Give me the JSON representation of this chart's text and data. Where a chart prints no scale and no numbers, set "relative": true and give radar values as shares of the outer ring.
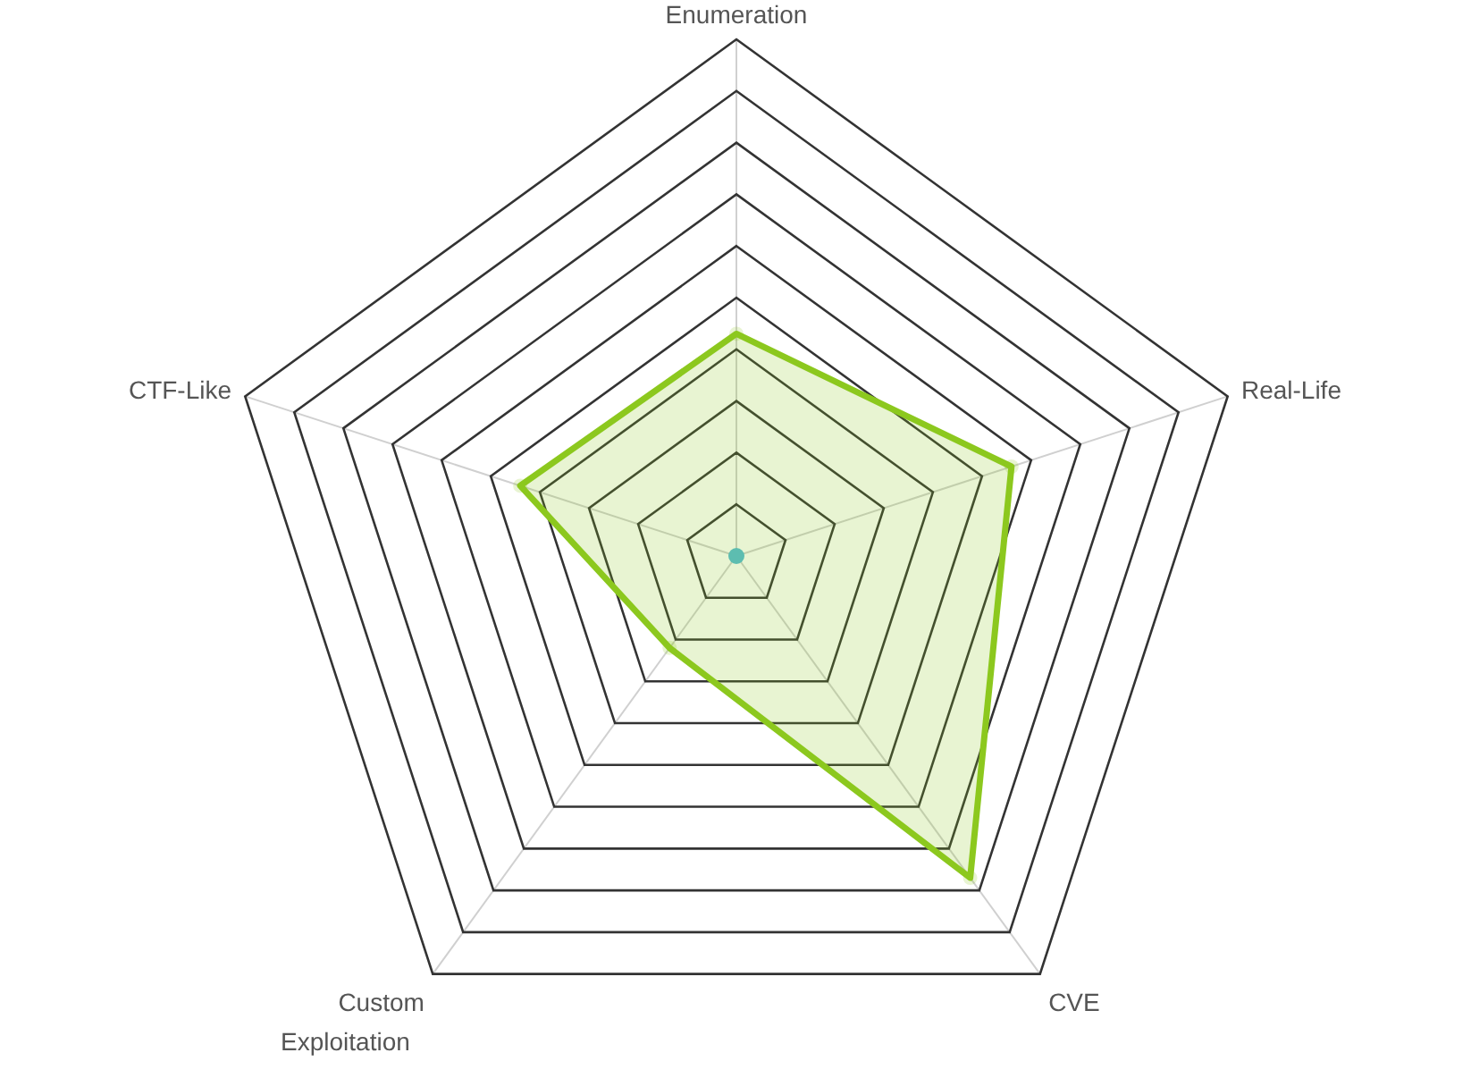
{
  "chart_data": {
    "type": "radar",
    "relative": true,
    "categories": [
      "Enumeration",
      "Real-Life",
      "CVE",
      "Custom Exploitation",
      "CTF-Like"
    ],
    "series": [
      {
        "color": "#8cc81e",
        "values": [
          0.43,
          0.56,
          0.77,
          0.22,
          0.44
        ]
      }
    ],
    "marker": "circle"
  }
}
